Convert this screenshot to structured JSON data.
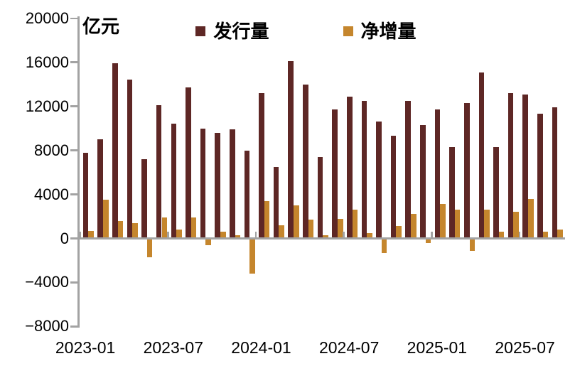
{
  "chart": {
    "unit_label": "亿元",
    "legend": [
      {
        "label": "发行量",
        "color": "#5E2725"
      },
      {
        "label": "净增量",
        "color": "#C5862D"
      }
    ]
  },
  "chart_data": {
    "type": "bar",
    "title": "",
    "unit": "亿元",
    "categories": [
      "2023-01",
      "2023-02",
      "2023-03",
      "2023-04",
      "2023-05",
      "2023-06",
      "2023-07",
      "2023-08",
      "2023-09",
      "2023-10",
      "2023-11",
      "2023-12",
      "2024-01",
      "2024-02",
      "2024-03",
      "2024-04",
      "2024-05",
      "2024-06",
      "2024-07",
      "2024-08",
      "2024-09",
      "2024-10",
      "2024-11",
      "2024-12",
      "2025-01",
      "2025-02",
      "2025-03",
      "2025-04",
      "2025-05",
      "2025-06",
      "2025-07",
      "2025-08",
      "2025-09"
    ],
    "series": [
      {
        "name": "发行量",
        "color": "#5E2725",
        "values": [
          7800,
          9000,
          15900,
          14400,
          7200,
          12100,
          10400,
          13700,
          10000,
          9600,
          9900,
          8000,
          13200,
          6500,
          16100,
          14000,
          7400,
          11700,
          12900,
          12500,
          10600,
          9300,
          12500,
          10300,
          11700,
          8300,
          12300,
          15100,
          8300,
          13200,
          13100,
          11300,
          11900
        ]
      },
      {
        "name": "净增量",
        "color": "#C5862D",
        "values": [
          700,
          3500,
          1600,
          1400,
          -1700,
          1900,
          800,
          1900,
          -600,
          600,
          300,
          -3200,
          3400,
          1200,
          3000,
          1700,
          300,
          1800,
          2600,
          500,
          -1300,
          1100,
          2200,
          -400,
          3100,
          2600,
          -1100,
          2600,
          600,
          2400,
          3600,
          600,
          800
        ]
      }
    ],
    "ylim": [
      -8000,
      20000
    ],
    "y_ticks": [
      20000,
      16000,
      12000,
      8000,
      4000,
      0,
      -4000,
      -8000
    ],
    "y_tick_labels": [
      "20000",
      "16000",
      "12000",
      "8000",
      "4000",
      "0",
      "−4000",
      "−8000"
    ],
    "x_tick_labels": [
      "2023-01",
      "2023-07",
      "2024-01",
      "2024-07",
      "2025-01",
      "2025-07"
    ],
    "legend_position": "top",
    "grid": false
  }
}
